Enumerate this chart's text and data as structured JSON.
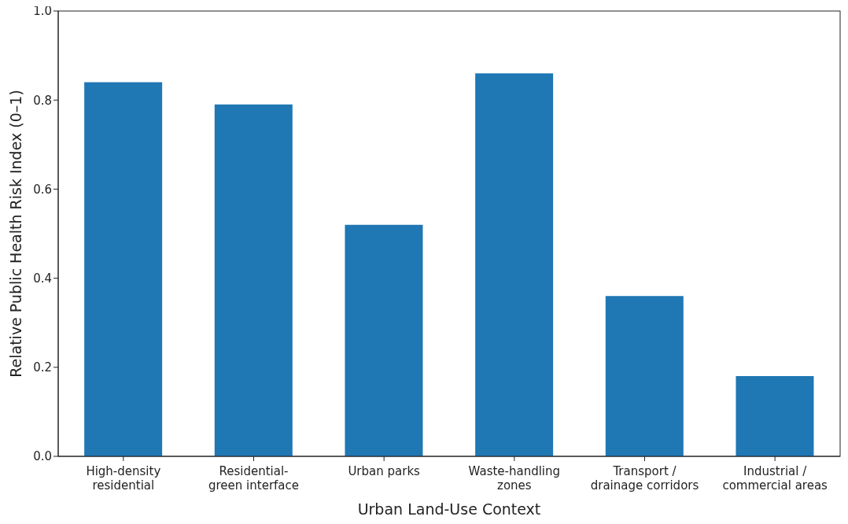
{
  "chart_data": {
    "type": "bar",
    "xlabel": "Urban Land-Use Context",
    "ylabel": "Relative Public Health Risk Index (0–1)",
    "categories": [
      "High-density\nresidential",
      "Residential-\ngreen interface",
      "Urban parks",
      "Waste-handling\nzones",
      "Transport /\ndrainage corridors",
      "Industrial /\ncommercial areas"
    ],
    "values": [
      0.84,
      0.79,
      0.52,
      0.86,
      0.36,
      0.18
    ],
    "color": "#1f77b4",
    "ylim": [
      0,
      1
    ],
    "yticks": [
      {
        "value": 0,
        "label": "0.0"
      },
      {
        "value": 0.2,
        "label": "0.2"
      },
      {
        "value": 0.4,
        "label": "0.4"
      },
      {
        "value": 0.6,
        "label": "0.6"
      },
      {
        "value": 0.8,
        "label": "0.8"
      },
      {
        "value": 1,
        "label": "1.0"
      }
    ],
    "grid": false,
    "legend": false
  }
}
